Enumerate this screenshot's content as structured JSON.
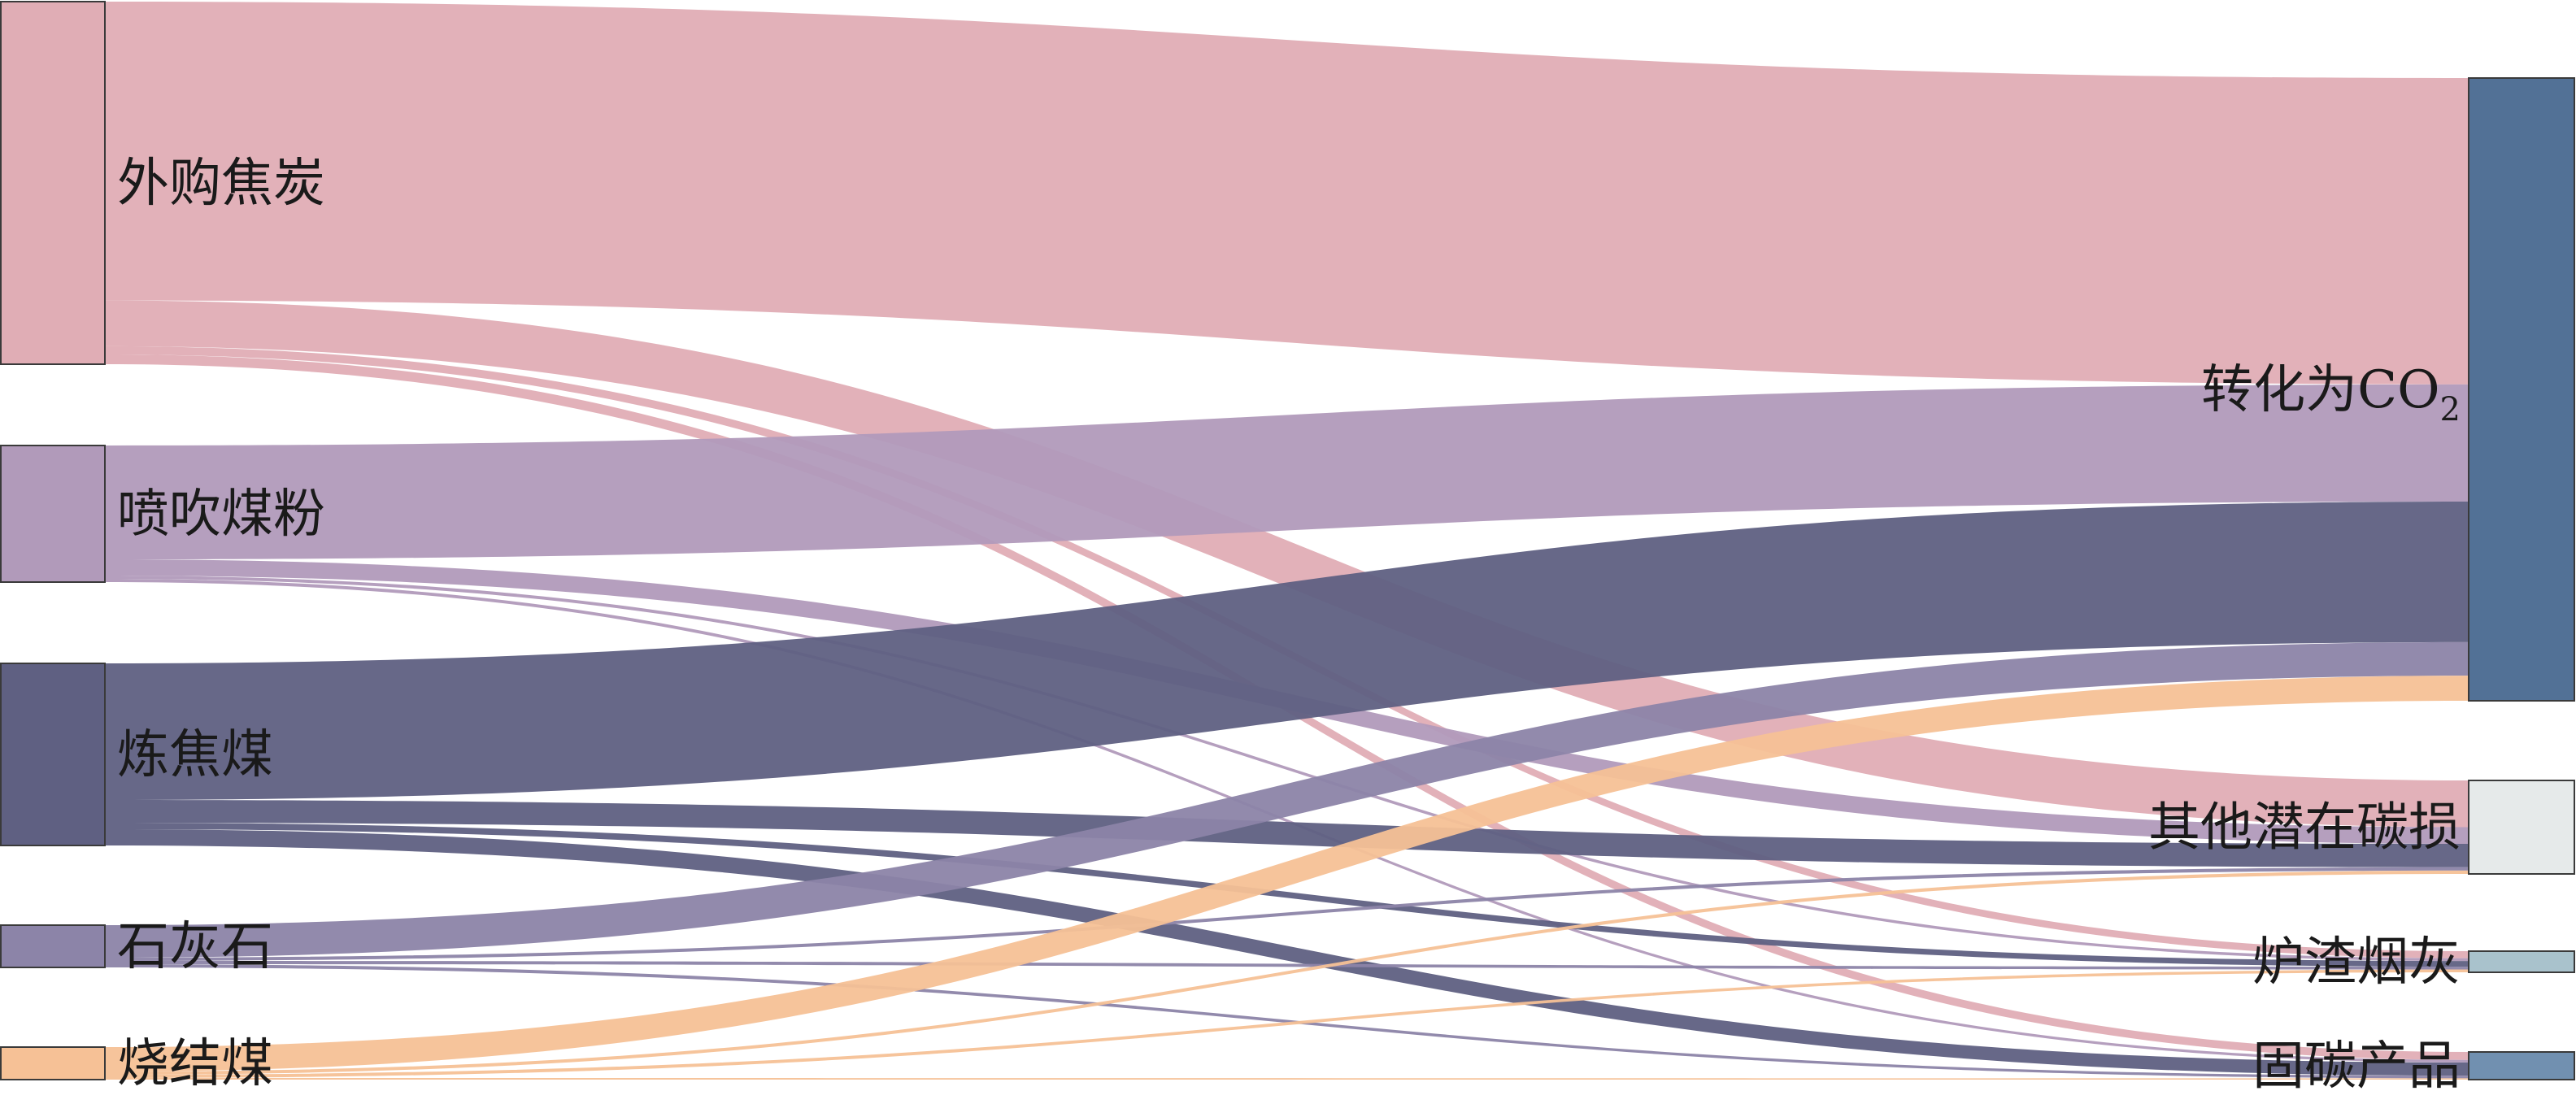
{
  "diagram": {
    "type": "sankey",
    "sources": [
      {
        "id": "coke",
        "label": "外购焦炭",
        "color": "#e0adb5"
      },
      {
        "id": "pci",
        "label": "喷吹煤粉",
        "color": "#b19aba"
      },
      {
        "id": "coking_coal",
        "label": "炼焦煤",
        "color": "#5f6082"
      },
      {
        "id": "limestone",
        "label": "石灰石",
        "color": "#8c84a8"
      },
      {
        "id": "sinter_coal",
        "label": "烧结煤",
        "color": "#f6c196"
      }
    ],
    "targets": [
      {
        "id": "co2",
        "label": "转化为CO",
        "sub": "2",
        "color": "#527196"
      },
      {
        "id": "loss",
        "label": "其他潜在碳损",
        "color": "#e6eaea"
      },
      {
        "id": "slag",
        "label": "炉渣烟灰",
        "color": "#a9c2cc"
      },
      {
        "id": "fixed",
        "label": "固碳产品",
        "color": "#7190b0"
      }
    ],
    "flows": [
      {
        "source": "coke",
        "target": "co2",
        "value": 183
      },
      {
        "source": "coke",
        "target": "loss",
        "value": 28
      },
      {
        "source": "coke",
        "target": "slag",
        "value": 5
      },
      {
        "source": "coke",
        "target": "fixed",
        "value": 6
      },
      {
        "source": "pci",
        "target": "co2",
        "value": 70
      },
      {
        "source": "pci",
        "target": "loss",
        "value": 10
      },
      {
        "source": "pci",
        "target": "slag",
        "value": 2
      },
      {
        "source": "pci",
        "target": "fixed",
        "value": 2
      },
      {
        "source": "coking_coal",
        "target": "co2",
        "value": 84
      },
      {
        "source": "coking_coal",
        "target": "loss",
        "value": 14
      },
      {
        "source": "coking_coal",
        "target": "slag",
        "value": 4
      },
      {
        "source": "coking_coal",
        "target": "fixed",
        "value": 10
      },
      {
        "source": "limestone",
        "target": "co2",
        "value": 20
      },
      {
        "source": "limestone",
        "target": "loss",
        "value": 2
      },
      {
        "source": "limestone",
        "target": "slag",
        "value": 2
      },
      {
        "source": "limestone",
        "target": "fixed",
        "value": 2
      },
      {
        "source": "sinter_coal",
        "target": "co2",
        "value": 15
      },
      {
        "source": "sinter_coal",
        "target": "loss",
        "value": 2
      },
      {
        "source": "sinter_coal",
        "target": "slag",
        "value": 2
      },
      {
        "source": "sinter_coal",
        "target": "fixed",
        "value": 1
      }
    ]
  }
}
